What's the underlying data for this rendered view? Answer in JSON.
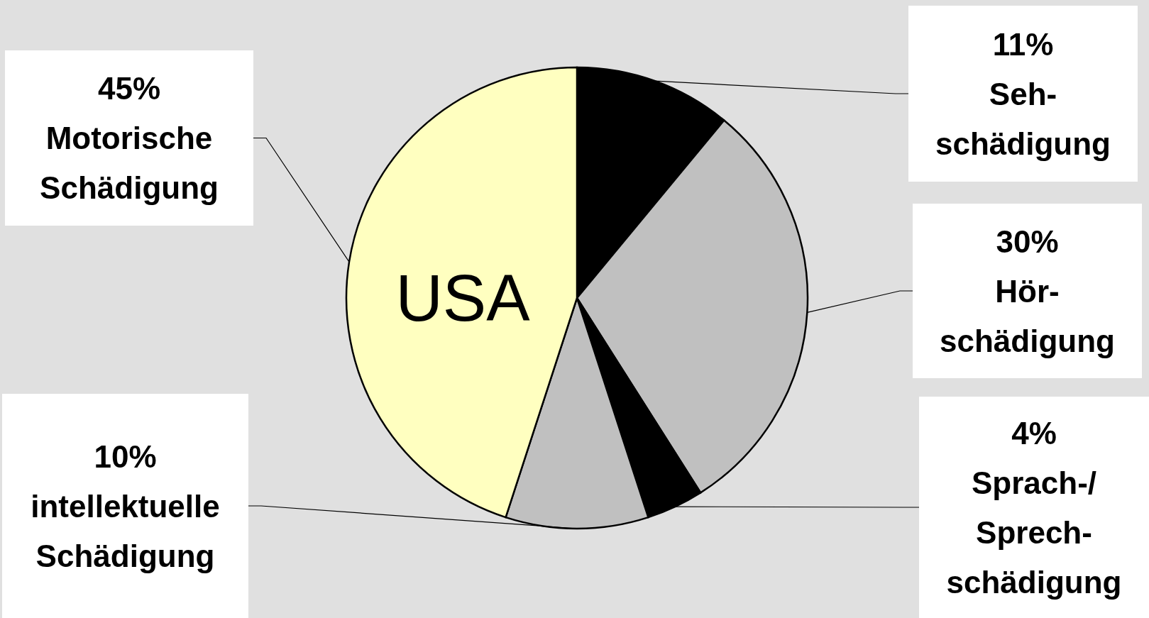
{
  "chart_data": {
    "type": "pie",
    "title": "USA",
    "categories": [
      "Seh-\nschädigung",
      "Hör-\nschädigung",
      "Sprach-/\nSprech-\nschädigung",
      "intellektuelle\nSchädigung",
      "Motorische\nSchädigung"
    ],
    "values": [
      11,
      30,
      4,
      10,
      45
    ],
    "colors": [
      "#000000",
      "#c0c0c0",
      "#000000",
      "#c0c0c0",
      "#ffffc0"
    ],
    "value_labels": [
      "11%",
      "30%",
      "4%",
      "10%",
      "45%"
    ]
  }
}
